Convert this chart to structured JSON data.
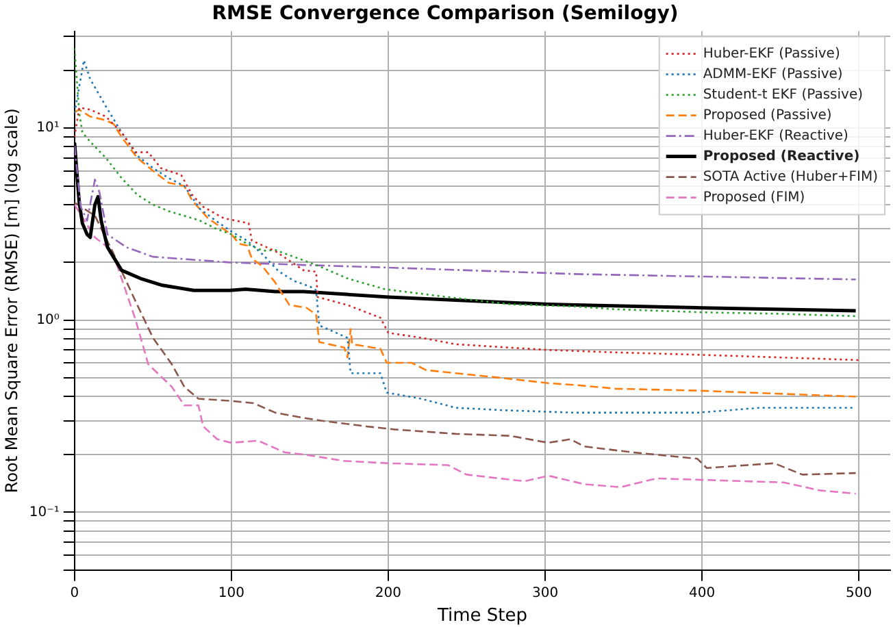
{
  "chart_data": {
    "type": "line",
    "title": "RMSE Convergence Comparison (Semilogy)",
    "xlabel": "Time Step",
    "ylabel": "Root Mean Square Error (RMSE) [m] (log scale)",
    "log": "y",
    "grid": true,
    "legend": "top right",
    "marker": "none",
    "xlim": [
      0,
      520
    ],
    "xticks": [
      0,
      100,
      200,
      300,
      400,
      500
    ],
    "ylim": [
      0.05,
      32
    ],
    "yticks": [
      {
        "value": 0.05,
        "label": null
      },
      {
        "value": 0.06,
        "label": null
      },
      {
        "value": 0.07,
        "label": null
      },
      {
        "value": 0.08,
        "label": null
      },
      {
        "value": 0.09,
        "label": null
      },
      {
        "value": 0.1,
        "label": "10⁻¹"
      },
      {
        "value": 0.2,
        "label": null
      },
      {
        "value": 0.3,
        "label": null
      },
      {
        "value": 0.4,
        "label": null
      },
      {
        "value": 0.5,
        "label": null
      },
      {
        "value": 0.6,
        "label": null
      },
      {
        "value": 0.7,
        "label": null
      },
      {
        "value": 0.8,
        "label": null
      },
      {
        "value": 0.9,
        "label": null
      },
      {
        "value": 1,
        "label": "10⁰"
      },
      {
        "value": 2,
        "label": null
      },
      {
        "value": 3,
        "label": null
      },
      {
        "value": 4,
        "label": null
      },
      {
        "value": 5,
        "label": null
      },
      {
        "value": 6,
        "label": null
      },
      {
        "value": 7,
        "label": null
      },
      {
        "value": 8,
        "label": null
      },
      {
        "value": 9,
        "label": null
      },
      {
        "value": 10,
        "label": "10¹"
      },
      {
        "value": 20,
        "label": null
      },
      {
        "value": 30,
        "label": null
      }
    ],
    "series": [
      {
        "name": "Huber-EKF (Passive)",
        "color": "#d62728",
        "line_style": "dotted",
        "x": [
          0,
          3,
          10,
          20,
          30,
          39,
          47,
          55,
          68,
          75,
          82,
          95,
          111,
          113,
          128,
          146,
          154,
          155,
          174,
          195,
          200,
          221,
          243,
          302,
          345,
          400,
          450,
          500
        ],
        "values": [
          9,
          12.8,
          12.5,
          11.5,
          9.5,
          7.5,
          7.5,
          6.2,
          5.7,
          4.5,
          3.9,
          3.4,
          3.2,
          2.6,
          2.29,
          1.82,
          1.79,
          1.32,
          1.2,
          1.03,
          0.86,
          0.81,
          0.75,
          0.7,
          0.68,
          0.66,
          0.64,
          0.62
        ]
      },
      {
        "name": "ADMM-EKF (Passive)",
        "color": "#1f77b4",
        "line_style": "dotted",
        "x": [
          0,
          6,
          10,
          20,
          30,
          40,
          50,
          60,
          70,
          80,
          90,
          100,
          110,
          120,
          130,
          140,
          150,
          154,
          156,
          174,
          176,
          195,
          199,
          221,
          243,
          273,
          319,
          397,
          437,
          498
        ],
        "values": [
          12,
          22.6,
          18,
          13,
          9.5,
          7.2,
          6.2,
          5.5,
          5,
          3.8,
          3.3,
          2.9,
          2.6,
          2.2,
          1.8,
          1.6,
          1.5,
          1.43,
          0.94,
          0.81,
          0.53,
          0.53,
          0.42,
          0.39,
          0.35,
          0.34,
          0.33,
          0.33,
          0.35,
          0.35
        ]
      },
      {
        "name": "Student-t EKF (Passive)",
        "color": "#2ca02c",
        "line_style": "dotted",
        "x": [
          0,
          3,
          5,
          10,
          20,
          30,
          40,
          50,
          60,
          70,
          80,
          90,
          100,
          110,
          120,
          128,
          154,
          174,
          198,
          238,
          278,
          319,
          345,
          400,
          450,
          498
        ],
        "values": [
          26,
          12,
          9.5,
          8.5,
          7,
          5.5,
          4.5,
          4,
          3.7,
          3.5,
          3.3,
          3,
          2.8,
          2.5,
          2.3,
          2.32,
          1.94,
          1.65,
          1.45,
          1.32,
          1.21,
          1.18,
          1.14,
          1.1,
          1.08,
          1.05
        ]
      },
      {
        "name": "Proposed (Passive)",
        "color": "#ff7f0e",
        "line_style": "dashed",
        "x": [
          0,
          3,
          10,
          20,
          25,
          30,
          40,
          50,
          60,
          70,
          75,
          85,
          100,
          105,
          110,
          113,
          120,
          128,
          131,
          137,
          148,
          154,
          156,
          172,
          174,
          176,
          177,
          195,
          199,
          215,
          224,
          243,
          273,
          302,
          319,
          345,
          397,
          498
        ],
        "values": [
          12.1,
          12.5,
          11.5,
          11,
          10.5,
          9,
          7,
          6,
          5.2,
          5,
          4.2,
          3.4,
          2.8,
          2.5,
          2.45,
          2.1,
          1.9,
          1.57,
          1.43,
          1.2,
          1.16,
          1.07,
          0.77,
          0.72,
          0.64,
          0.9,
          0.75,
          0.71,
          0.6,
          0.6,
          0.55,
          0.53,
          0.5,
          0.47,
          0.46,
          0.44,
          0.43,
          0.4
        ]
      },
      {
        "name": "Huber-EKF (Reactive)",
        "color": "#9467bd",
        "line_style": "dashdot",
        "x": [
          0,
          4,
          8,
          13,
          16,
          21,
          33,
          50,
          99,
          146,
          200,
          302,
          319,
          498
        ],
        "values": [
          8.1,
          3.9,
          3.3,
          5.4,
          4.6,
          2.8,
          2.4,
          2.14,
          2,
          1.94,
          1.88,
          1.76,
          1.74,
          1.63
        ]
      },
      {
        "name": "Proposed (Reactive)",
        "color": "#000000",
        "line_style": "solid",
        "x": [
          0,
          3,
          5,
          8,
          10,
          13,
          15,
          17,
          21,
          30,
          42,
          56,
          76,
          99,
          109,
          128,
          146,
          200,
          302,
          319,
          400,
          498
        ],
        "values": [
          8.4,
          4.1,
          3.2,
          2.8,
          2.7,
          4,
          4.4,
          3.3,
          2.4,
          1.82,
          1.65,
          1.52,
          1.43,
          1.43,
          1.45,
          1.41,
          1.41,
          1.32,
          1.21,
          1.2,
          1.16,
          1.12
        ]
      },
      {
        "name": "SOTA Active (Huber+FIM)",
        "color": "#8c564b",
        "line_style": "dashed",
        "x": [
          0,
          13,
          24,
          39,
          50,
          62,
          70,
          79,
          100,
          114,
          128,
          146,
          157,
          186,
          204,
          243,
          278,
          302,
          316,
          325,
          356,
          397,
          403,
          446,
          464,
          498
        ],
        "values": [
          4.1,
          3.5,
          2.3,
          1.25,
          0.81,
          0.59,
          0.45,
          0.39,
          0.38,
          0.37,
          0.33,
          0.31,
          0.3,
          0.28,
          0.27,
          0.256,
          0.25,
          0.23,
          0.24,
          0.22,
          0.205,
          0.19,
          0.17,
          0.18,
          0.157,
          0.16
        ]
      },
      {
        "name": "Proposed (FIM)",
        "color": "#e377c2",
        "line_style": "dashed",
        "x": [
          0,
          13,
          24,
          39,
          47,
          62,
          70,
          79,
          82,
          91,
          100,
          117,
          134,
          146,
          172,
          200,
          238,
          250,
          287,
          302,
          325,
          348,
          371,
          452,
          475,
          498
        ],
        "values": [
          4,
          2.7,
          2.3,
          1,
          0.59,
          0.45,
          0.36,
          0.36,
          0.28,
          0.24,
          0.23,
          0.236,
          0.205,
          0.2,
          0.185,
          0.18,
          0.176,
          0.157,
          0.145,
          0.155,
          0.14,
          0.135,
          0.15,
          0.143,
          0.13,
          0.125
        ]
      }
    ]
  }
}
